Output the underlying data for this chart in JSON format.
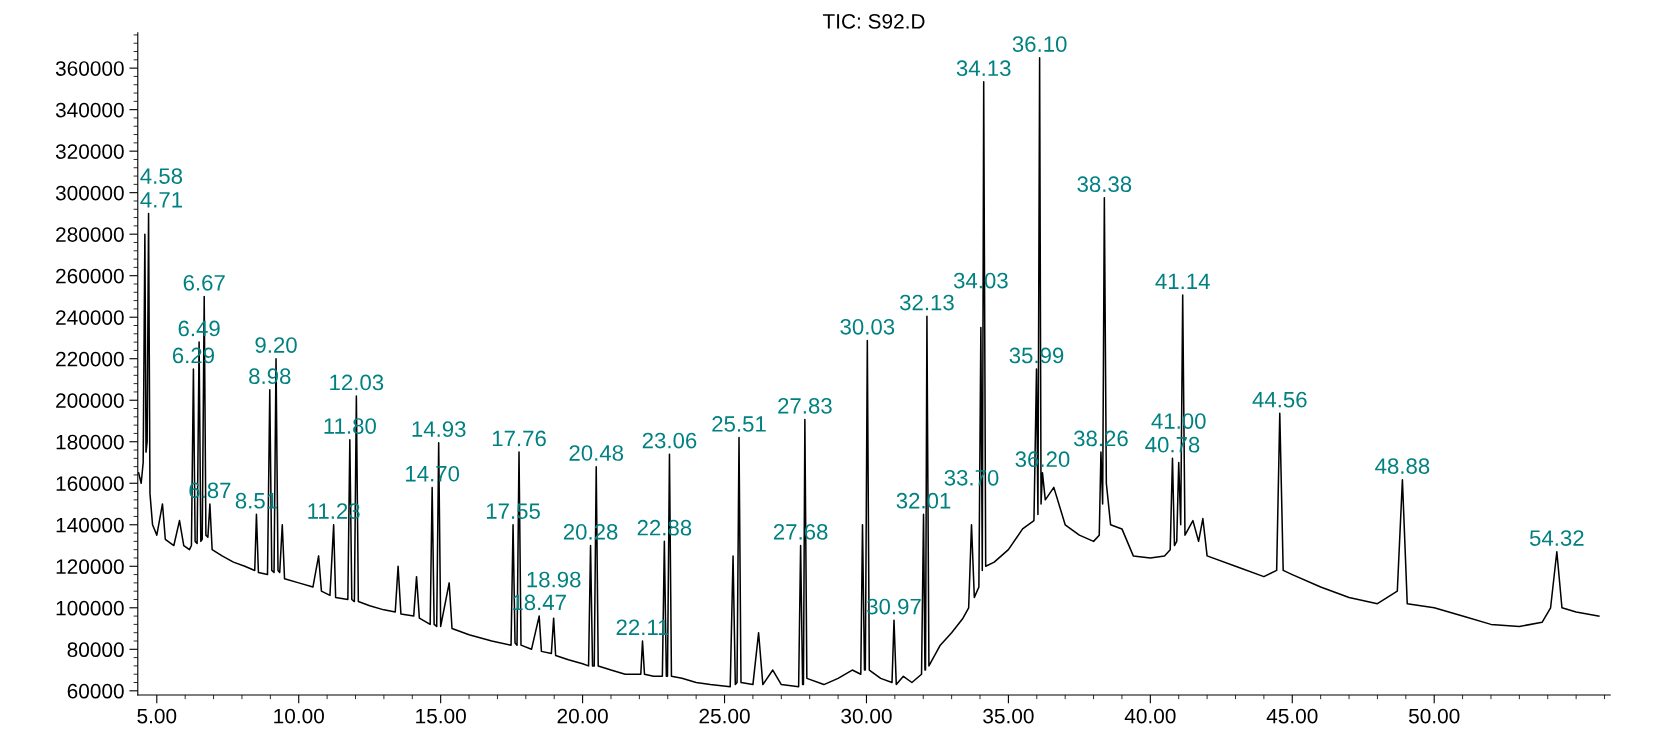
{
  "chart_data": {
    "type": "line",
    "title": "TIC: S92.D",
    "xlim": [
      4.33,
      56.2
    ],
    "xticks": [
      {
        "value": 5,
        "label": "5.00"
      },
      {
        "value": 10,
        "label": "10.00"
      },
      {
        "value": 15,
        "label": "15.00"
      },
      {
        "value": 20,
        "label": "20.00"
      },
      {
        "value": 25,
        "label": "25.00"
      },
      {
        "value": 30,
        "label": "30.00"
      },
      {
        "value": 35,
        "label": "35.00"
      },
      {
        "value": 40,
        "label": "40.00"
      },
      {
        "value": 45,
        "label": "45.00"
      },
      {
        "value": 50,
        "label": "50.00"
      }
    ],
    "ylim": [
      58000,
      377000
    ],
    "yticks": [
      60000,
      80000,
      100000,
      120000,
      140000,
      160000,
      180000,
      200000,
      220000,
      240000,
      260000,
      280000,
      300000,
      320000,
      340000,
      360000
    ],
    "grid": false,
    "legend": false,
    "marker": "none",
    "line_style": "solid",
    "series": [
      {
        "color": "#000000",
        "x": [
          4.36,
          4.45,
          4.52,
          4.58,
          4.62,
          4.66,
          4.71,
          4.76,
          4.85,
          5.0,
          5.2,
          5.3,
          5.6,
          5.8,
          5.95,
          6.15,
          6.22,
          6.29,
          6.35,
          6.42,
          6.49,
          6.55,
          6.6,
          6.67,
          6.73,
          6.8,
          6.87,
          6.95,
          7.3,
          7.7,
          8.1,
          8.45,
          8.51,
          8.58,
          8.9,
          8.98,
          9.05,
          9.13,
          9.2,
          9.27,
          9.33,
          9.42,
          9.5,
          10.0,
          10.5,
          10.7,
          10.8,
          11.1,
          11.23,
          11.3,
          11.73,
          11.8,
          11.87,
          11.96,
          12.03,
          12.1,
          12.5,
          13.0,
          13.4,
          13.5,
          13.6,
          14.05,
          14.15,
          14.25,
          14.63,
          14.7,
          14.77,
          14.86,
          14.93,
          15.0,
          15.3,
          15.4,
          16.0,
          16.8,
          17.48,
          17.55,
          17.62,
          17.69,
          17.76,
          17.83,
          18.2,
          18.47,
          18.55,
          18.9,
          18.98,
          19.05,
          19.5,
          20.0,
          20.21,
          20.28,
          20.35,
          20.41,
          20.48,
          20.55,
          21.0,
          21.5,
          22.05,
          22.11,
          22.18,
          22.5,
          22.81,
          22.88,
          22.95,
          22.99,
          23.06,
          23.13,
          23.5,
          24.0,
          24.5,
          25.2,
          25.3,
          25.38,
          25.44,
          25.51,
          25.58,
          26.0,
          26.2,
          26.35,
          26.7,
          27.0,
          27.61,
          27.68,
          27.75,
          27.78,
          27.83,
          27.9,
          28.5,
          29.0,
          29.5,
          29.8,
          29.86,
          29.93,
          29.96,
          30.03,
          30.1,
          30.5,
          30.9,
          30.97,
          31.05,
          31.3,
          31.6,
          31.94,
          32.01,
          32.06,
          32.08,
          32.13,
          32.2,
          32.6,
          33.0,
          33.4,
          33.6,
          33.7,
          33.8,
          33.96,
          34.03,
          34.08,
          34.13,
          34.2,
          34.5,
          35.0,
          35.5,
          35.9,
          35.99,
          36.04,
          36.1,
          36.15,
          36.2,
          36.3,
          36.6,
          37.0,
          37.5,
          38.0,
          38.2,
          38.26,
          38.32,
          38.38,
          38.45,
          38.6,
          39.0,
          39.4,
          40.0,
          40.5,
          40.7,
          40.78,
          40.85,
          40.93,
          41.0,
          41.07,
          41.14,
          41.22,
          41.5,
          41.7,
          41.85,
          42.0,
          43.0,
          44.0,
          44.45,
          44.56,
          44.68,
          45.0,
          46.0,
          47.0,
          48.0,
          48.7,
          48.88,
          49.05,
          50.0,
          51.0,
          52.0,
          53.0,
          53.8,
          54.1,
          54.32,
          54.5,
          55.0,
          55.8
        ],
        "values": [
          165000,
          160000,
          170000,
          280000,
          175000,
          180000,
          290000,
          155000,
          140000,
          135000,
          150000,
          133000,
          130000,
          142000,
          130000,
          128000,
          130000,
          215000,
          132000,
          131000,
          228000,
          132000,
          133000,
          250000,
          135000,
          134000,
          150000,
          128000,
          125000,
          122000,
          120000,
          118000,
          145000,
          117000,
          116000,
          205000,
          118000,
          117000,
          220000,
          118000,
          117000,
          140000,
          114000,
          112000,
          110000,
          125000,
          108000,
          106000,
          140000,
          105000,
          104000,
          181000,
          104000,
          103000,
          202000,
          103000,
          101000,
          99000,
          98000,
          120000,
          97000,
          96000,
          115000,
          95000,
          92000,
          158000,
          92000,
          91000,
          179500,
          91000,
          112000,
          90000,
          87000,
          84000,
          82000,
          140000,
          83000,
          82000,
          175000,
          82000,
          80000,
          96000,
          79000,
          78000,
          95000,
          77000,
          75000,
          73000,
          72000,
          130000,
          72000,
          72000,
          168000,
          72000,
          70000,
          68000,
          68000,
          84000,
          68000,
          67000,
          67000,
          132000,
          67000,
          67000,
          174000,
          67000,
          66000,
          64000,
          63000,
          62000,
          125000,
          63000,
          64000,
          182000,
          64000,
          63000,
          88000,
          63000,
          70000,
          63000,
          62000,
          130000,
          63000,
          63000,
          190700,
          66000,
          63000,
          66000,
          70000,
          68000,
          140000,
          70000,
          70000,
          228800,
          70000,
          66000,
          64000,
          94000,
          63000,
          67000,
          64000,
          68000,
          145000,
          70000,
          70000,
          240500,
          72000,
          82000,
          88000,
          95000,
          100000,
          140000,
          105000,
          110000,
          235000,
          118000,
          353400,
          120000,
          122000,
          128000,
          138000,
          142000,
          215000,
          145000,
          365000,
          150000,
          165000,
          152000,
          158000,
          140000,
          135000,
          132000,
          135000,
          175000,
          150000,
          297500,
          160000,
          140000,
          138000,
          125000,
          124000,
          125000,
          128000,
          172000,
          130000,
          132000,
          170000,
          140000,
          250700,
          135000,
          142000,
          132000,
          143000,
          125000,
          120000,
          115000,
          118000,
          193700,
          118000,
          116000,
          110000,
          105000,
          102000,
          108000,
          161700,
          102000,
          100000,
          96000,
          92000,
          91000,
          93000,
          100000,
          127000,
          100000,
          98000,
          96000
        ]
      }
    ],
    "annotations": [
      {
        "text": "4.71",
        "x": 4.71,
        "y": 290000
      },
      {
        "text": "4.58",
        "x": 4.58,
        "y": 280000
      },
      {
        "text": "6.67",
        "x": 6.67,
        "y": 250000
      },
      {
        "text": "6.49",
        "x": 6.49,
        "y": 228000
      },
      {
        "text": "6.29",
        "x": 6.29,
        "y": 215000
      },
      {
        "text": "6.87",
        "x": 6.87,
        "y": 150000
      },
      {
        "text": "9.20",
        "x": 9.2,
        "y": 220000
      },
      {
        "text": "8.98",
        "x": 8.98,
        "y": 205000
      },
      {
        "text": "8.51",
        "x": 8.51,
        "y": 145000
      },
      {
        "text": "12.03",
        "x": 12.03,
        "y": 202000
      },
      {
        "text": "11.80",
        "x": 11.8,
        "y": 181000
      },
      {
        "text": "11.23",
        "x": 11.23,
        "y": 140000
      },
      {
        "text": "14.93",
        "x": 14.93,
        "y": 179500
      },
      {
        "text": "14.70",
        "x": 14.7,
        "y": 158000
      },
      {
        "text": "17.76",
        "x": 17.76,
        "y": 175000
      },
      {
        "text": "17.55",
        "x": 17.55,
        "y": 140000
      },
      {
        "text": "18.47",
        "x": 18.47,
        "y": 96000
      },
      {
        "text": "18.98",
        "x": 18.98,
        "y": 95000
      },
      {
        "text": "20.48",
        "x": 20.48,
        "y": 168000
      },
      {
        "text": "20.28",
        "x": 20.28,
        "y": 130000
      },
      {
        "text": "22.11",
        "x": 22.11,
        "y": 84000
      },
      {
        "text": "23.06",
        "x": 23.06,
        "y": 174000
      },
      {
        "text": "22.88",
        "x": 22.88,
        "y": 132000
      },
      {
        "text": "25.51",
        "x": 25.51,
        "y": 182000
      },
      {
        "text": "27.83",
        "x": 27.83,
        "y": 190700
      },
      {
        "text": "27.68",
        "x": 27.68,
        "y": 130000
      },
      {
        "text": "30.03",
        "x": 30.03,
        "y": 228800
      },
      {
        "text": "30.97",
        "x": 30.97,
        "y": 94000
      },
      {
        "text": "32.13",
        "x": 32.13,
        "y": 240500
      },
      {
        "text": "32.01",
        "x": 32.01,
        "y": 145000
      },
      {
        "text": "33.70",
        "x": 33.7,
        "y": 140000
      },
      {
        "text": "34.13",
        "x": 34.13,
        "y": 353400
      },
      {
        "text": "34.03",
        "x": 34.03,
        "y": 235000
      },
      {
        "text": "36.10",
        "x": 36.1,
        "y": 365000
      },
      {
        "text": "35.99",
        "x": 35.99,
        "y": 215000
      },
      {
        "text": "36.20",
        "x": 36.2,
        "y": 165000
      },
      {
        "text": "38.38",
        "x": 38.38,
        "y": 297500
      },
      {
        "text": "38.26",
        "x": 38.26,
        "y": 175000
      },
      {
        "text": "41.14",
        "x": 41.14,
        "y": 250700
      },
      {
        "text": "41.00",
        "x": 41.0,
        "y": 170000
      },
      {
        "text": "40.78",
        "x": 40.78,
        "y": 172000
      },
      {
        "text": "44.56",
        "x": 44.56,
        "y": 193700
      },
      {
        "text": "48.88",
        "x": 48.88,
        "y": 161700
      },
      {
        "text": "54.32",
        "x": 54.32,
        "y": 127000
      }
    ]
  }
}
